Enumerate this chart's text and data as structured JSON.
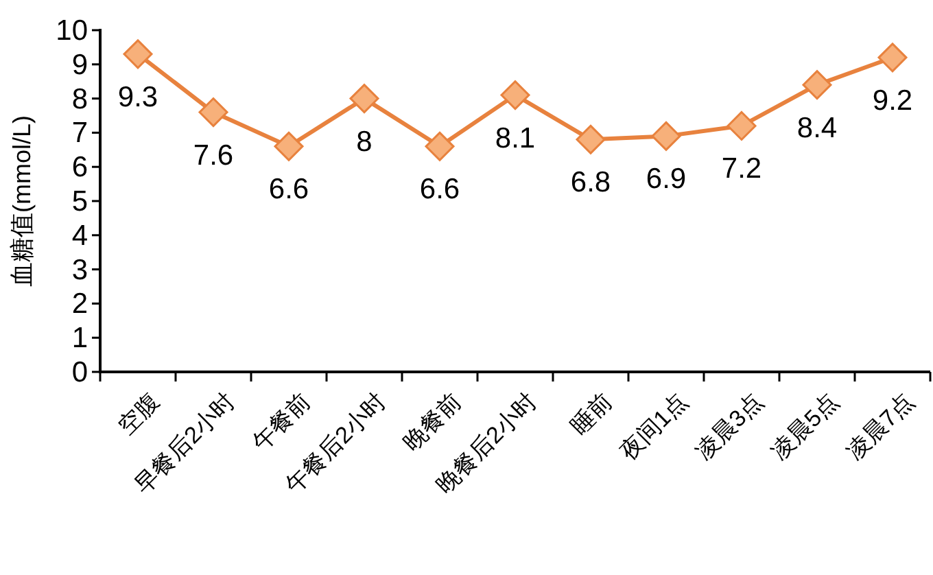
{
  "chart_data": {
    "type": "line",
    "ylabel": "血糖值(mmol/L)",
    "categories": [
      "空腹",
      "早餐后2小时",
      "午餐前",
      "午餐后2小时",
      "晚餐前",
      "晚餐后2小时",
      "睡前",
      "夜间1点",
      "凌晨3点",
      "凌晨5点",
      "凌晨7点"
    ],
    "series": [
      {
        "color": "#e8823e",
        "values": [
          9.3,
          7.6,
          6.6,
          8,
          6.6,
          8.1,
          6.8,
          6.9,
          7.2,
          8.4,
          9.2
        ]
      }
    ],
    "ylim": [
      0,
      10
    ],
    "yticks": [
      0,
      1,
      2,
      3,
      4,
      5,
      6,
      7,
      8,
      9,
      10
    ],
    "marker": "diamond",
    "data_labels": true
  }
}
